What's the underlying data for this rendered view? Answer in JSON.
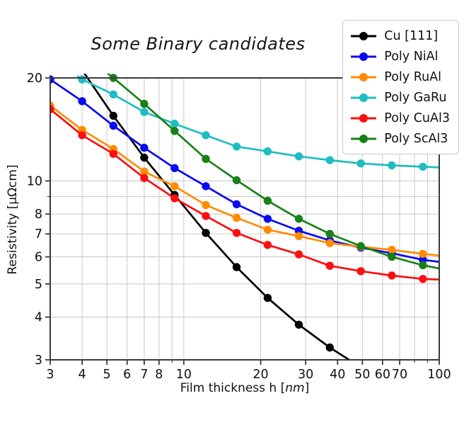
{
  "chart_data": {
    "type": "line",
    "title": "Some Binary candidates",
    "x_label": "Film thickness h [nm]",
    "x_label_parts": {
      "prefix": "Film thickness h [",
      "italic": "nm",
      "suffix": "]"
    },
    "y_label": "Resistivity [μΩcm]",
    "x_scale": "log",
    "y_scale": "log",
    "x_range": [
      3,
      100
    ],
    "y_range": [
      3,
      20
    ],
    "grid": true,
    "legend_position": "upper right",
    "x_ticks": [
      {
        "v": 3,
        "label": "3"
      },
      {
        "v": 4,
        "label": "4"
      },
      {
        "v": 5,
        "label": "5"
      },
      {
        "v": 6,
        "label": "6"
      },
      {
        "v": 7,
        "label": "7"
      },
      {
        "v": 8,
        "label": "8"
      },
      {
        "v": 9,
        "label": ""
      },
      {
        "v": 10,
        "label": "10"
      },
      {
        "v": 20,
        "label": "20"
      },
      {
        "v": 30,
        "label": "30"
      },
      {
        "v": 40,
        "label": "40"
      },
      {
        "v": 50,
        "label": "50"
      },
      {
        "v": 60,
        "label": "60"
      },
      {
        "v": 70,
        "label": "70"
      },
      {
        "v": 80,
        "label": ""
      },
      {
        "v": 90,
        "label": ""
      },
      {
        "v": 100,
        "label": "100"
      }
    ],
    "y_ticks": [
      {
        "v": 3,
        "label": "3"
      },
      {
        "v": 4,
        "label": "4"
      },
      {
        "v": 5,
        "label": "5"
      },
      {
        "v": 6,
        "label": "6"
      },
      {
        "v": 7,
        "label": "7"
      },
      {
        "v": 8,
        "label": "8"
      },
      {
        "v": 9,
        "label": ""
      },
      {
        "v": 10,
        "label": "10"
      },
      {
        "v": 20,
        "label": "20"
      }
    ],
    "series": [
      {
        "name": "Cu [111]",
        "color": "#000000",
        "points": [
          {
            "x": 4.05,
            "r": 20.8,
            "m": false
          },
          {
            "x": 5.3,
            "r": 15.5,
            "m": true
          },
          {
            "x": 7.0,
            "r": 11.7,
            "m": true
          },
          {
            "x": 9.2,
            "r": 9.1,
            "m": true
          },
          {
            "x": 12.2,
            "r": 7.05,
            "m": true
          },
          {
            "x": 16.1,
            "r": 5.6,
            "m": true
          },
          {
            "x": 21.3,
            "r": 4.55,
            "m": true
          },
          {
            "x": 28.2,
            "r": 3.8,
            "m": true
          },
          {
            "x": 37.3,
            "r": 3.26,
            "m": true
          },
          {
            "x": 46.0,
            "r": 2.95,
            "m": false
          }
        ]
      },
      {
        "name": "Poly NiAl",
        "color": "#0a0aee",
        "points": [
          {
            "x": 3.0,
            "r": 19.8,
            "m": true
          },
          {
            "x": 4.0,
            "r": 17.1,
            "m": true
          },
          {
            "x": 5.3,
            "r": 14.5,
            "m": true
          },
          {
            "x": 7.0,
            "r": 12.5,
            "m": true
          },
          {
            "x": 9.2,
            "r": 10.9,
            "m": true
          },
          {
            "x": 12.2,
            "r": 9.65,
            "m": true
          },
          {
            "x": 16.1,
            "r": 8.55,
            "m": true
          },
          {
            "x": 21.3,
            "r": 7.75,
            "m": true
          },
          {
            "x": 28.2,
            "r": 7.15,
            "m": true
          },
          {
            "x": 37.3,
            "r": 6.7,
            "m": true
          },
          {
            "x": 49.3,
            "r": 6.38,
            "m": true
          },
          {
            "x": 65.2,
            "r": 6.15,
            "m": true
          },
          {
            "x": 86.3,
            "r": 5.88,
            "m": true
          },
          {
            "x": 100,
            "r": 5.8,
            "m": false
          }
        ]
      },
      {
        "name": "Poly RuAl",
        "color": "#ff8c00",
        "points": [
          {
            "x": 3.0,
            "r": 16.6,
            "m": true
          },
          {
            "x": 4.0,
            "r": 14.1,
            "m": true
          },
          {
            "x": 5.3,
            "r": 12.4,
            "m": true
          },
          {
            "x": 7.0,
            "r": 10.65,
            "m": true
          },
          {
            "x": 9.2,
            "r": 9.65,
            "m": true
          },
          {
            "x": 12.2,
            "r": 8.5,
            "m": true
          },
          {
            "x": 16.1,
            "r": 7.8,
            "m": true
          },
          {
            "x": 21.3,
            "r": 7.2,
            "m": true
          },
          {
            "x": 28.2,
            "r": 6.9,
            "m": true
          },
          {
            "x": 37.3,
            "r": 6.58,
            "m": true
          },
          {
            "x": 49.3,
            "r": 6.42,
            "m": true
          },
          {
            "x": 65.2,
            "r": 6.29,
            "m": true
          },
          {
            "x": 86.3,
            "r": 6.12,
            "m": true
          },
          {
            "x": 100,
            "r": 6.05,
            "m": false
          }
        ]
      },
      {
        "name": "Poly GaRu",
        "color": "#1dbdc2",
        "points": [
          {
            "x": 3.85,
            "r": 20.2,
            "m": false
          },
          {
            "x": 4.0,
            "r": 19.8,
            "m": true
          },
          {
            "x": 5.3,
            "r": 17.9,
            "m": true
          },
          {
            "x": 7.0,
            "r": 15.9,
            "m": true
          },
          {
            "x": 9.2,
            "r": 14.7,
            "m": true
          },
          {
            "x": 12.2,
            "r": 13.6,
            "m": true
          },
          {
            "x": 16.1,
            "r": 12.6,
            "m": true
          },
          {
            "x": 21.3,
            "r": 12.2,
            "m": true
          },
          {
            "x": 28.2,
            "r": 11.8,
            "m": true
          },
          {
            "x": 37.3,
            "r": 11.5,
            "m": true
          },
          {
            "x": 49.3,
            "r": 11.25,
            "m": true
          },
          {
            "x": 65.2,
            "r": 11.1,
            "m": true
          },
          {
            "x": 86.3,
            "r": 11.0,
            "m": true
          },
          {
            "x": 100,
            "r": 10.95,
            "m": false
          }
        ]
      },
      {
        "name": "Poly CuAl3",
        "color": "#fb0f0f",
        "points": [
          {
            "x": 3.0,
            "r": 16.2,
            "m": true
          },
          {
            "x": 4.0,
            "r": 13.6,
            "m": true
          },
          {
            "x": 5.3,
            "r": 12.0,
            "m": true
          },
          {
            "x": 7.0,
            "r": 10.2,
            "m": true
          },
          {
            "x": 9.2,
            "r": 8.9,
            "m": true
          },
          {
            "x": 12.2,
            "r": 7.9,
            "m": true
          },
          {
            "x": 16.1,
            "r": 7.05,
            "m": true
          },
          {
            "x": 21.3,
            "r": 6.5,
            "m": true
          },
          {
            "x": 28.2,
            "r": 6.1,
            "m": true
          },
          {
            "x": 37.3,
            "r": 5.65,
            "m": true
          },
          {
            "x": 49.3,
            "r": 5.45,
            "m": true
          },
          {
            "x": 65.2,
            "r": 5.29,
            "m": true
          },
          {
            "x": 86.3,
            "r": 5.17,
            "m": true
          },
          {
            "x": 100,
            "r": 5.15,
            "m": false
          }
        ]
      },
      {
        "name": "Poly ScAl3",
        "color": "#178117",
        "points": [
          {
            "x": 5.0,
            "r": 20.7,
            "m": false
          },
          {
            "x": 5.3,
            "r": 20.0,
            "m": true
          },
          {
            "x": 7.0,
            "r": 16.8,
            "m": true
          },
          {
            "x": 9.2,
            "r": 14.0,
            "m": true
          },
          {
            "x": 12.2,
            "r": 11.6,
            "m": true
          },
          {
            "x": 16.1,
            "r": 10.05,
            "m": true
          },
          {
            "x": 21.3,
            "r": 8.75,
            "m": true
          },
          {
            "x": 28.2,
            "r": 7.75,
            "m": true
          },
          {
            "x": 37.3,
            "r": 7.0,
            "m": true
          },
          {
            "x": 49.3,
            "r": 6.45,
            "m": true
          },
          {
            "x": 65.2,
            "r": 6.0,
            "m": true
          },
          {
            "x": 86.3,
            "r": 5.67,
            "m": true
          },
          {
            "x": 100,
            "r": 5.55,
            "m": false
          }
        ]
      }
    ],
    "style": {
      "grid_color": "#cdcdcd",
      "spine_color": "#3a3a3a",
      "tick_label_color": "#111111",
      "line_width": 2.7,
      "marker_radius": 5.7
    }
  }
}
